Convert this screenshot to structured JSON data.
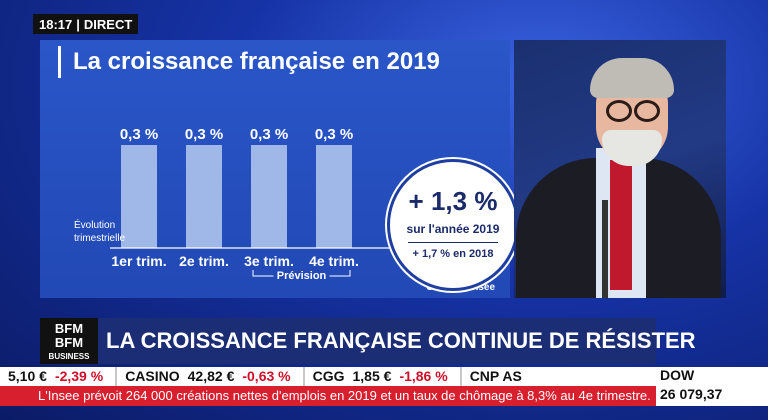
{
  "header": {
    "time": "18:17",
    "label": "DIRECT"
  },
  "chart_data": {
    "type": "bar",
    "title": "La croissance française en 2019",
    "categories": [
      "1er trim.",
      "2e trim.",
      "3e trim.",
      "4e trim."
    ],
    "values": [
      0.3,
      0.3,
      0.3,
      0.3
    ],
    "value_labels": [
      "0,3 %",
      "0,3 %",
      "0,3 %",
      "0,3 %"
    ],
    "ylabel": "Évolution trimestrielle",
    "forecast_label": "Prévision",
    "source": "Source : Insee",
    "bar_color": "#9fb8e8",
    "ylim": [
      0,
      0.3
    ]
  },
  "callout": {
    "big": "+ 1,3 %",
    "mid": "sur l'année 2019",
    "small": "+ 1,7 % en 2018"
  },
  "banner": {
    "logo_line1": "BFM",
    "logo_line2": "BFM",
    "logo_sub": "BUSINESS",
    "headline": "LA CROISSANCE FRANÇAISE CONTINUE DE RÉSISTER"
  },
  "ticker": [
    {
      "name": "",
      "value": "5,10 €",
      "change": "-2,39 %"
    },
    {
      "name": "CASINO",
      "value": "42,82 €",
      "change": "-0,63 %"
    },
    {
      "name": "CGG",
      "value": "1,85 €",
      "change": "-1,86 %"
    },
    {
      "name": "CNP AS",
      "value": "",
      "change": ""
    }
  ],
  "index": {
    "name": "DOW",
    "value": "26 079,37"
  },
  "news": "L'Insee prévoit 264 000 créations nettes d'emplois en 2019 et un taux de chômage à 8,3% au 4e trimestre."
}
